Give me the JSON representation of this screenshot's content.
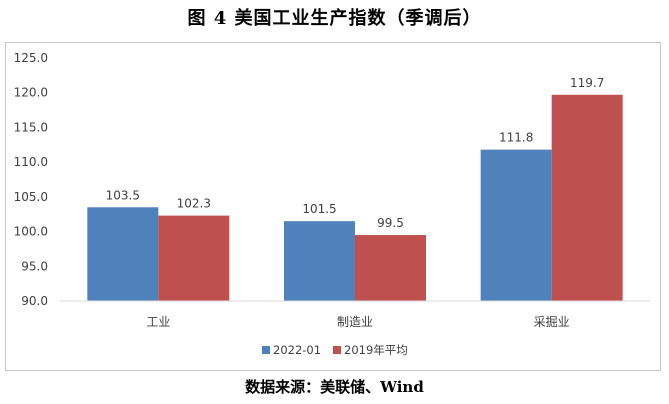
{
  "chart_data": {
    "type": "bar",
    "title": "图 4 美国工业生产指数（季调后）",
    "categories": [
      "工业",
      "制造业",
      "采掘业"
    ],
    "series": [
      {
        "name": "2022-01",
        "values": [
          103.5,
          101.5,
          111.8
        ],
        "color": "#4F81BD"
      },
      {
        "name": "2019年平均",
        "values": [
          102.3,
          99.5,
          119.7
        ],
        "color": "#C0504D"
      }
    ],
    "ylim": [
      90,
      125
    ],
    "ytick_labels": [
      "90.0",
      "95.0",
      "100.0",
      "105.0",
      "110.0",
      "115.0",
      "120.0",
      "125.0"
    ],
    "grid": false,
    "legend_position": "bottom"
  },
  "source": "数据来源：美联储、Wind"
}
